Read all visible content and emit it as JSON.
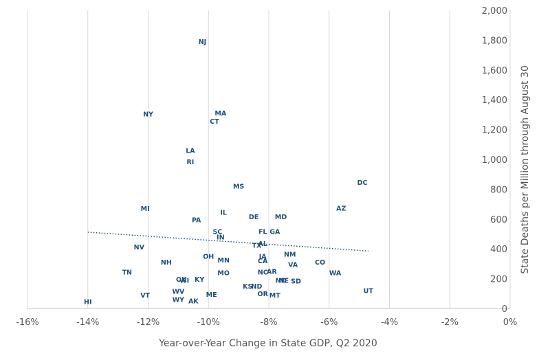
{
  "chart_data": {
    "type": "scatter",
    "title": "",
    "xlabel": "Year-over-Year Change in State GDP, Q2 2020",
    "ylabel": "State Deaths per Million through August 30",
    "xlim": [
      -16,
      0
    ],
    "ylim": [
      0,
      2000
    ],
    "x_ticks": [
      -16,
      -14,
      -12,
      -10,
      -8,
      -6,
      -4,
      -2,
      0
    ],
    "x_tick_labels": [
      "-16%",
      "-14%",
      "-12%",
      "-10%",
      "-8%",
      "-6%",
      "-4%",
      "-2%",
      "0%"
    ],
    "y_ticks": [
      0,
      200,
      400,
      600,
      800,
      1000,
      1200,
      1400,
      1600,
      1800,
      2000
    ],
    "y_tick_labels": [
      "0",
      "200",
      "400",
      "600",
      "800",
      "1,000",
      "1,200",
      "1,400",
      "1,600",
      "1,800",
      "2,000"
    ],
    "grid": "vertical",
    "y_axis_position": "right",
    "marker_color": "#1f4e79",
    "trendline": {
      "style": "dotted",
      "color": "#1f4e79",
      "x": [
        -14,
        -4.7
      ],
      "y": [
        512,
        386
      ]
    },
    "points": [
      {
        "label": "NJ",
        "x": -10.2,
        "y": 1790
      },
      {
        "label": "NY",
        "x": -12.0,
        "y": 1305
      },
      {
        "label": "MA",
        "x": -9.6,
        "y": 1310
      },
      {
        "label": "CT",
        "x": -9.8,
        "y": 1255
      },
      {
        "label": "LA",
        "x": -10.6,
        "y": 1060
      },
      {
        "label": "RI",
        "x": -10.6,
        "y": 985
      },
      {
        "label": "MS",
        "x": -9.0,
        "y": 820
      },
      {
        "label": "DC",
        "x": -4.9,
        "y": 845
      },
      {
        "label": "MI",
        "x": -12.1,
        "y": 670
      },
      {
        "label": "AZ",
        "x": -5.6,
        "y": 672
      },
      {
        "label": "IL",
        "x": -9.5,
        "y": 645
      },
      {
        "label": "DE",
        "x": -8.5,
        "y": 615
      },
      {
        "label": "MD",
        "x": -7.6,
        "y": 615
      },
      {
        "label": "PA",
        "x": -10.4,
        "y": 595
      },
      {
        "label": "FL",
        "x": -8.2,
        "y": 515
      },
      {
        "label": "GA",
        "x": -7.8,
        "y": 515
      },
      {
        "label": "SC",
        "x": -9.7,
        "y": 515
      },
      {
        "label": "IN",
        "x": -9.6,
        "y": 480
      },
      {
        "label": "TX",
        "x": -8.4,
        "y": 425
      },
      {
        "label": "AL",
        "x": -8.2,
        "y": 435
      },
      {
        "label": "NV",
        "x": -12.3,
        "y": 412
      },
      {
        "label": "NM",
        "x": -7.3,
        "y": 365
      },
      {
        "label": "OH",
        "x": -10.0,
        "y": 350
      },
      {
        "label": "IA",
        "x": -8.2,
        "y": 350
      },
      {
        "label": "MN",
        "x": -9.5,
        "y": 325
      },
      {
        "label": "CA",
        "x": -8.2,
        "y": 320
      },
      {
        "label": "NH",
        "x": -11.4,
        "y": 310
      },
      {
        "label": "VA",
        "x": -7.2,
        "y": 295
      },
      {
        "label": "CO",
        "x": -6.3,
        "y": 310
      },
      {
        "label": "TN",
        "x": -12.7,
        "y": 245
      },
      {
        "label": "MO",
        "x": -9.5,
        "y": 240
      },
      {
        "label": "NC",
        "x": -8.2,
        "y": 245
      },
      {
        "label": "AR",
        "x": -7.9,
        "y": 250
      },
      {
        "label": "WA",
        "x": -5.8,
        "y": 240
      },
      {
        "label": "OK",
        "x": -10.9,
        "y": 195
      },
      {
        "label": "WI",
        "x": -10.8,
        "y": 190
      },
      {
        "label": "KY",
        "x": -10.3,
        "y": 195
      },
      {
        "label": "ND",
        "x": -7.6,
        "y": 190
      },
      {
        "label": "NE",
        "x": -7.5,
        "y": 190
      },
      {
        "label": "SD",
        "x": -7.1,
        "y": 185
      },
      {
        "label": "KS",
        "x": -8.7,
        "y": 150
      },
      {
        "label": "ND",
        "x": -8.4,
        "y": 150
      },
      {
        "label": "UT",
        "x": -4.7,
        "y": 120
      },
      {
        "label": "WV",
        "x": -11.0,
        "y": 115
      },
      {
        "label": "OR",
        "x": -8.2,
        "y": 100
      },
      {
        "label": "MT",
        "x": -7.8,
        "y": 90
      },
      {
        "label": "VT",
        "x": -12.1,
        "y": 90
      },
      {
        "label": "ME",
        "x": -9.9,
        "y": 95
      },
      {
        "label": "WY",
        "x": -11.0,
        "y": 60
      },
      {
        "label": "AK",
        "x": -10.5,
        "y": 50
      },
      {
        "label": "HI",
        "x": -14.0,
        "y": 45
      }
    ]
  }
}
